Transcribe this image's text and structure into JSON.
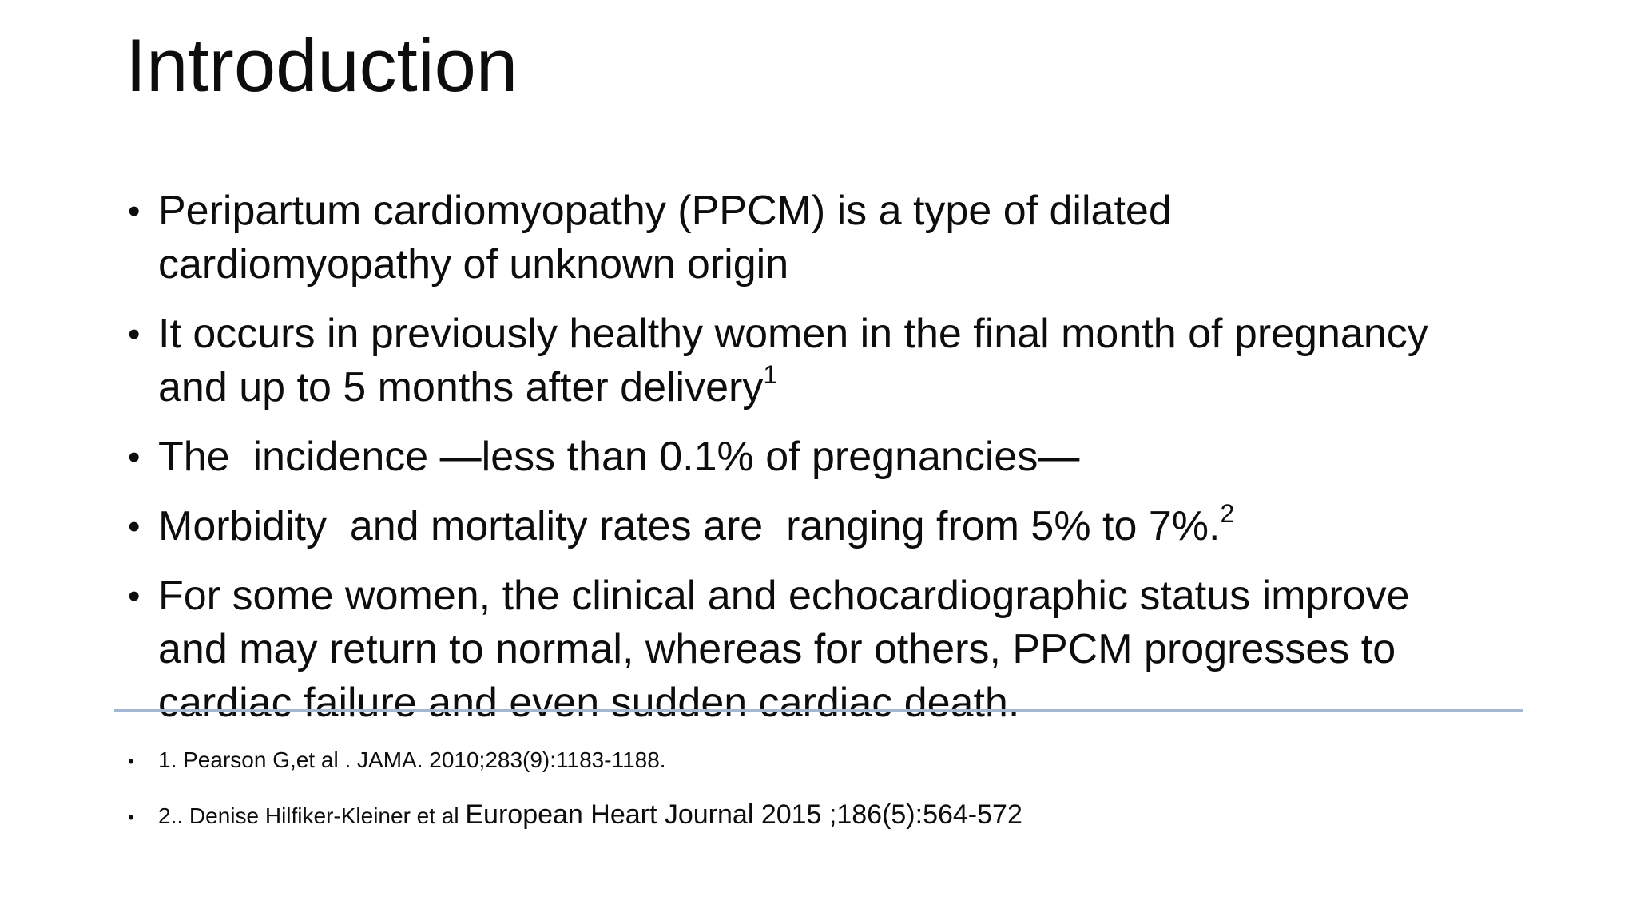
{
  "slide": {
    "title": "Introduction",
    "bullet_char": "•",
    "bullets": [
      {
        "text": "Peripartum cardiomyopathy (PPCM) is a type of dilated\ncardiomyopathy of unknown origin",
        "sup": ""
      },
      {
        "text": "It occurs in previously healthy women in the final month of pregnancy\nand up to 5 months after delivery",
        "sup": "1"
      },
      {
        "text": "The  incidence —less than 0.1% of pregnancies—",
        "sup": ""
      },
      {
        "text": "Morbidity  and mortality rates are  ranging from 5% to 7%.",
        "sup": "2"
      },
      {
        "text": "For some women, the clinical and echocardiographic status improve\nand may return to normal, whereas for others, PPCM progresses to\ncardiac failure and even sudden cardiac death.",
        "sup": ""
      }
    ],
    "references": [
      {
        "text_small": "1. Pearson G,et al . JAMA. 2010;283(9):1183-1188.",
        "text_large": ""
      },
      {
        "text_small": "2.. Denise Hilfiker-Kleiner et al ",
        "text_large": "European Heart Journal 2015 ;186(5):564-572"
      }
    ],
    "divider_color": "#a4b7d2"
  }
}
